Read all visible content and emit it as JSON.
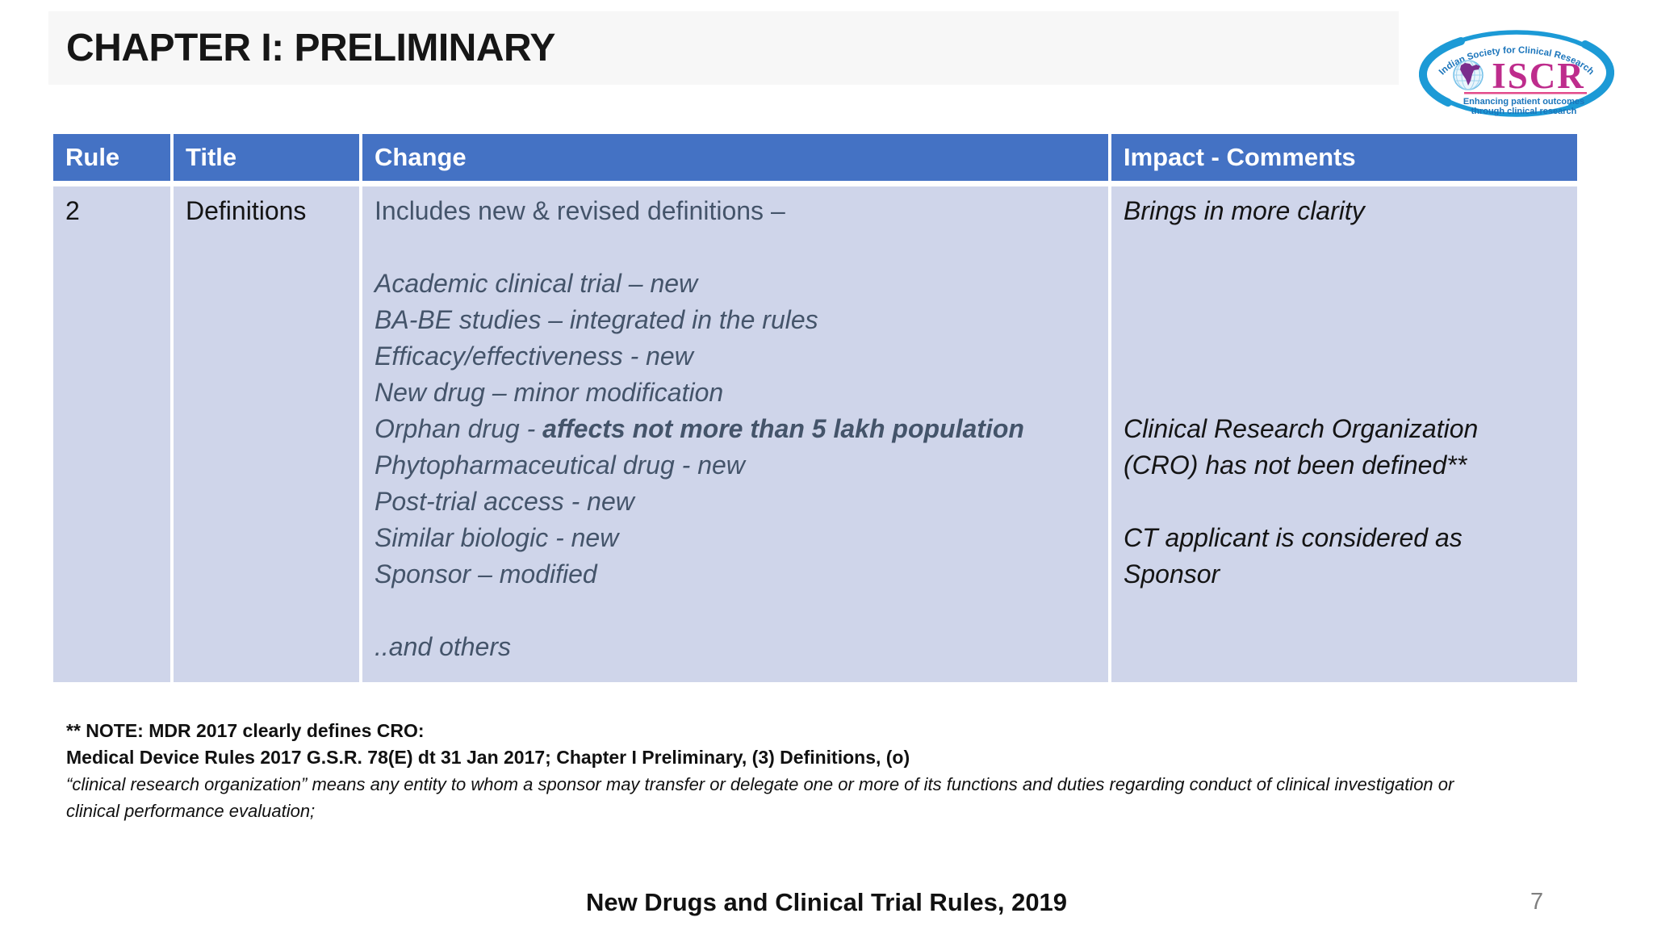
{
  "slide": {
    "title": "CHAPTER I: PRELIMINARY",
    "footer": "New Drugs and Clinical Trial Rules, 2019",
    "page_number": "7"
  },
  "logo": {
    "org_name": "Indian Society for Clinical Research",
    "acronym": "ISCR",
    "tagline1": "Enhancing patient outcomes",
    "tagline2": "through clinical research",
    "colors": {
      "swoosh": "#1C9AD6",
      "text_blue": "#1B75BB",
      "acronym_magenta": "#BE2C8C",
      "india_purple": "#7B2E8D",
      "underline_pink": "#E24B8B"
    }
  },
  "table": {
    "headers": [
      "Rule",
      "Title",
      "Change",
      "Impact - Comments"
    ],
    "colors": {
      "header_bg": "#4472C4",
      "header_text": "#FFFFFF",
      "body_bg": "#CFD5EA",
      "change_text": "#44546A",
      "impact_text": "#141414"
    },
    "row": {
      "rule": "2",
      "title": "Definitions",
      "change_lines": [
        {
          "i": false,
          "seg": [
            {
              "t": "Includes new & revised definitions –",
              "b": false
            }
          ]
        },
        {
          "i": false,
          "seg": []
        },
        {
          "i": true,
          "seg": [
            {
              "t": "Academic clinical trial – new",
              "b": false
            }
          ]
        },
        {
          "i": true,
          "seg": [
            {
              "t": "BA-BE studies – integrated in the rules",
              "b": false
            }
          ]
        },
        {
          "i": true,
          "seg": [
            {
              "t": "Efficacy/effectiveness - new",
              "b": false
            }
          ]
        },
        {
          "i": true,
          "seg": [
            {
              "t": "New drug – minor modification",
              "b": false
            }
          ]
        },
        {
          "i": true,
          "seg": [
            {
              "t": "Orphan drug - ",
              "b": false
            },
            {
              "t": "affects not more than 5 lakh population",
              "b": true
            }
          ]
        },
        {
          "i": true,
          "seg": [
            {
              "t": "Phytopharmaceutical drug - new",
              "b": false
            }
          ]
        },
        {
          "i": true,
          "seg": [
            {
              "t": "Post-trial access - new",
              "b": false
            }
          ]
        },
        {
          "i": true,
          "seg": [
            {
              "t": "Similar biologic - new",
              "b": false
            }
          ]
        },
        {
          "i": true,
          "seg": [
            {
              "t": "Sponsor – modified",
              "b": false
            }
          ]
        },
        {
          "i": true,
          "seg": []
        },
        {
          "i": true,
          "seg": [
            {
              "t": "..and others",
              "b": false
            }
          ]
        }
      ],
      "impact_lines": [
        {
          "i": true,
          "seg": [
            {
              "t": "Brings in more clarity",
              "b": false
            }
          ]
        },
        {
          "i": true,
          "seg": []
        },
        {
          "i": true,
          "seg": []
        },
        {
          "i": true,
          "seg": []
        },
        {
          "i": true,
          "seg": []
        },
        {
          "i": true,
          "seg": []
        },
        {
          "i": true,
          "seg": [
            {
              "t": "Clinical Research Organization",
              "b": false
            }
          ]
        },
        {
          "i": true,
          "seg": [
            {
              "t": "(CRO) has not been defined**",
              "b": false
            }
          ]
        },
        {
          "i": true,
          "seg": []
        },
        {
          "i": true,
          "seg": [
            {
              "t": "CT applicant is considered as",
              "b": false
            }
          ]
        },
        {
          "i": true,
          "seg": [
            {
              "t": "Sponsor",
              "b": false
            }
          ]
        }
      ]
    }
  },
  "note": {
    "line1": "** NOTE: MDR 2017 clearly defines CRO:",
    "line2": "Medical Device Rules 2017 G.S.R. 78(E) dt 31 Jan 2017; Chapter I Preliminary, (3) Definitions, (o)",
    "line3": "“clinical research organization” means any entity to whom a sponsor may transfer or delegate one or more of its functions and duties regarding conduct of clinical investigation or",
    "line4": "clinical performance evaluation;"
  }
}
